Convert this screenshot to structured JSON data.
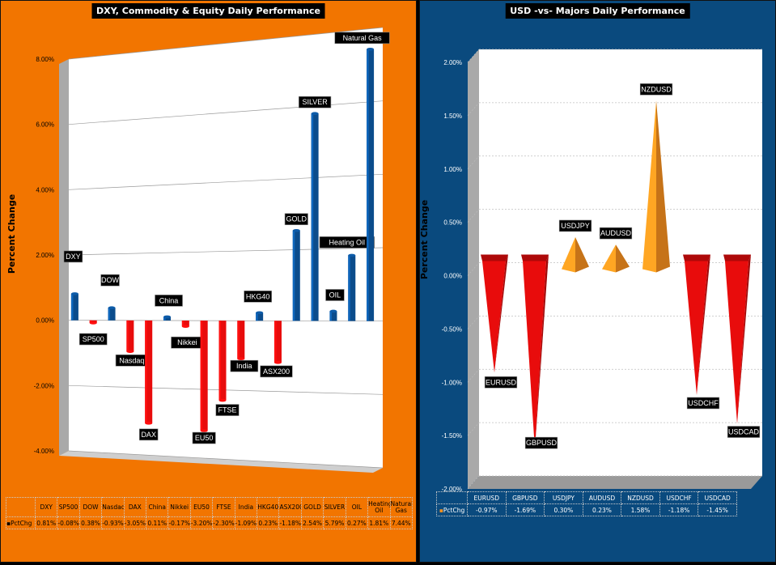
{
  "chart_data": [
    {
      "type": "bar",
      "title": "DXY, Commodity  & Equity Daily Performance",
      "ylabel": "Percent Change",
      "ylim": [
        -4,
        8
      ],
      "yticks": [
        "8.00%",
        "6.00%",
        "4.00%",
        "2.00%",
        "0.00%",
        "-2.00%",
        "-4.00%"
      ],
      "categories": [
        "DXY",
        "SP500",
        "DOW",
        "Nasdaq",
        "DAX",
        "China",
        "Nikkei",
        "EU50",
        "FTSE",
        "India",
        "HKG40",
        "ASX200",
        "GOLD",
        "SILVER",
        "OIL",
        "Heating Oil",
        "Natural Gas"
      ],
      "series": [
        {
          "name": "PctChg",
          "values": [
            0.81,
            -0.08,
            0.38,
            -0.93,
            -3.05,
            0.11,
            -0.17,
            -3.2,
            -2.3,
            -1.09,
            0.23,
            -1.18,
            2.54,
            5.79,
            0.27,
            1.81,
            7.44
          ]
        }
      ],
      "table_values": [
        "0.81%",
        "-0.08%",
        "0.38%",
        "-0.93%",
        "-3.05%",
        "0.11%",
        "-0.17%",
        "-3.20%",
        "-2.30%",
        "-1.09%",
        "0.23%",
        "-1.18%",
        "2.54%",
        "5.79%",
        "0.27%",
        "1.81%",
        "7.44%"
      ],
      "colors": {
        "positive": "#0b4c8c",
        "negative": "#e80c0c"
      }
    },
    {
      "type": "bar",
      "title": "USD -vs- Majors Daily Performance",
      "ylabel": "Percent Change",
      "ylim": [
        -2,
        2
      ],
      "yticks": [
        "2.00%",
        "1.50%",
        "1.00%",
        "0.50%",
        "0.00%",
        "-0.50%",
        "-1.00%",
        "-1.50%",
        "-2.00%"
      ],
      "categories": [
        "EURUSD",
        "GBPUSD",
        "USDJPY",
        "AUDUSD",
        "NZDUSD",
        "USDCHF",
        "USDCAD"
      ],
      "series": [
        {
          "name": "PctChg",
          "values": [
            -0.97,
            -1.69,
            0.3,
            0.23,
            1.58,
            -1.18,
            -1.45
          ]
        }
      ],
      "table_values": [
        "-0.97%",
        "-1.69%",
        "0.30%",
        "0.23%",
        "1.58%",
        "-1.18%",
        "-1.45%"
      ],
      "colors": {
        "positive": "#f7901e",
        "negative": "#e80c0c"
      }
    }
  ],
  "table_series_label": "PctChg"
}
